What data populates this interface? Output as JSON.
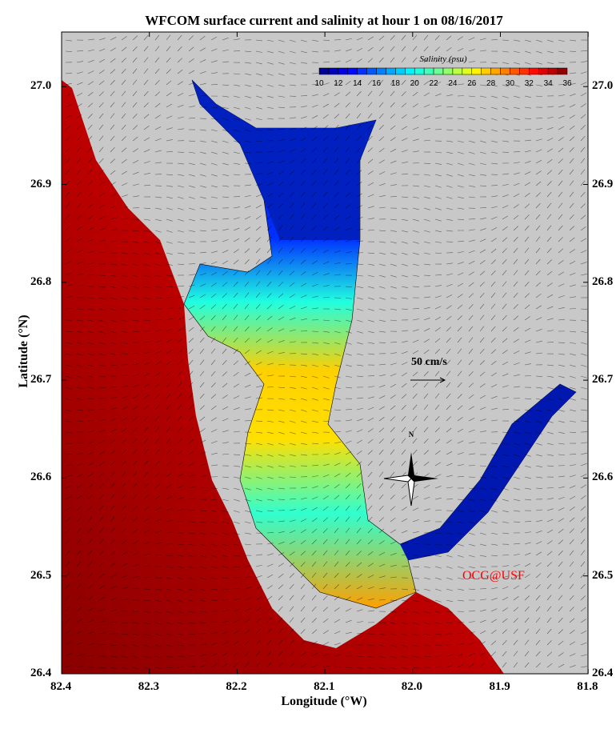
{
  "title": "WFCOM surface current and salinity at hour 1 on 08/16/2017",
  "x_axis": {
    "label": "Longitude (°W)",
    "ticks": [
      "82.4",
      "82.3",
      "82.2",
      "82.1",
      "82.0",
      "81.9",
      "81.8"
    ]
  },
  "y_axis": {
    "label": "Latitude (°N)",
    "ticks": [
      "26.4",
      "26.5",
      "26.6",
      "26.7",
      "26.8",
      "26.9",
      "27.0"
    ]
  },
  "colorbar": {
    "title": "Salinity (psu)",
    "labels": [
      "10",
      "12",
      "14",
      "16",
      "18",
      "20",
      "22",
      "24",
      "26",
      "28",
      "30",
      "32",
      "34",
      "36"
    ],
    "range": [
      10,
      36
    ],
    "colormap": "jet"
  },
  "scale_arrow": {
    "label": "50 cm/s"
  },
  "compass": {
    "label": "N"
  },
  "credit": "OCG@USF",
  "colors": {
    "land": "#c8c8c8",
    "gulf": "#c00000",
    "credit": "#ff0000"
  }
}
